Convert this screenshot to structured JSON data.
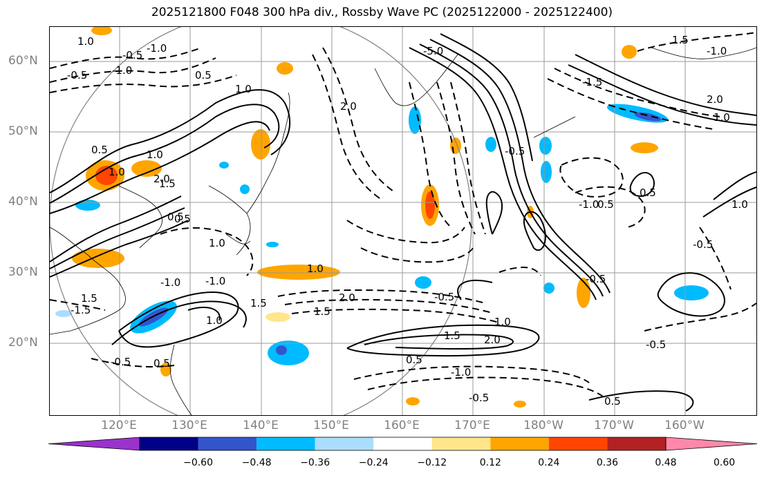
{
  "title": "2025121800 F048 300 hPa div., Rossby Wave PC (2025122000 - 2025122400)",
  "lat_labels": [
    "60°N",
    "50°N",
    "40°N",
    "30°N",
    "20°N"
  ],
  "lon_labels": [
    "120°E",
    "130°E",
    "140°E",
    "150°E",
    "160°E",
    "170°E",
    "180°W",
    "170°W",
    "160°W"
  ],
  "colorbar": {
    "tick_labels": [
      "−0.60",
      "−0.48",
      "−0.36",
      "−0.24",
      "−0.12",
      "0.12",
      "0.24",
      "0.36",
      "0.48",
      "0.60"
    ],
    "colors": [
      "#9933cc",
      "#000088",
      "#3355cc",
      "#00bbff",
      "#aaddff",
      "#ffffff",
      "#ffe68a",
      "#ffa500",
      "#ff4500",
      "#b22222",
      "#ff88aa"
    ]
  },
  "contour_labels": [
    {
      "text": "1.0"
    },
    {
      "text": "-0.5"
    },
    {
      "text": "-1.0"
    },
    {
      "text": "-0.5"
    },
    {
      "text": "0.5"
    },
    {
      "text": "1.0"
    },
    {
      "text": "2.0"
    },
    {
      "text": "1.0"
    },
    {
      "text": "0.5"
    },
    {
      "text": "1.0"
    },
    {
      "text": "1.5"
    },
    {
      "text": "2.0"
    },
    {
      "text": "0.5"
    },
    {
      "text": "-1.0"
    },
    {
      "text": "1.0"
    },
    {
      "text": "-0.5"
    },
    {
      "text": "0.5"
    },
    {
      "text": "1.0"
    },
    {
      "text": "2.0"
    },
    {
      "text": "1.5"
    },
    {
      "text": "1.0"
    },
    {
      "text": "2.0"
    },
    {
      "text": "1.5"
    },
    {
      "text": "0.5"
    },
    {
      "text": "-0.5"
    },
    {
      "text": "-1.0"
    },
    {
      "text": "-0.5"
    },
    {
      "text": "-1.0"
    },
    {
      "text": "-0.5"
    },
    {
      "text": "0.5"
    },
    {
      "text": "-1.5"
    },
    {
      "text": "0.5"
    },
    {
      "text": "1.0"
    },
    {
      "text": "-0.5"
    },
    {
      "text": "-0.5"
    },
    {
      "text": "0.5"
    },
    {
      "text": "-0.5"
    },
    {
      "text": "1.0"
    },
    {
      "text": "2.0"
    },
    {
      "text": "-1.0"
    },
    {
      "text": "1.5"
    },
    {
      "text": "-1.0"
    },
    {
      "text": "-1.5"
    },
    {
      "text": "0.5"
    },
    {
      "text": "1.5"
    },
    {
      "text": "1.0"
    },
    {
      "text": "1.5"
    },
    {
      "text": "-5.0"
    },
    {
      "text": "-1.0"
    }
  ]
}
